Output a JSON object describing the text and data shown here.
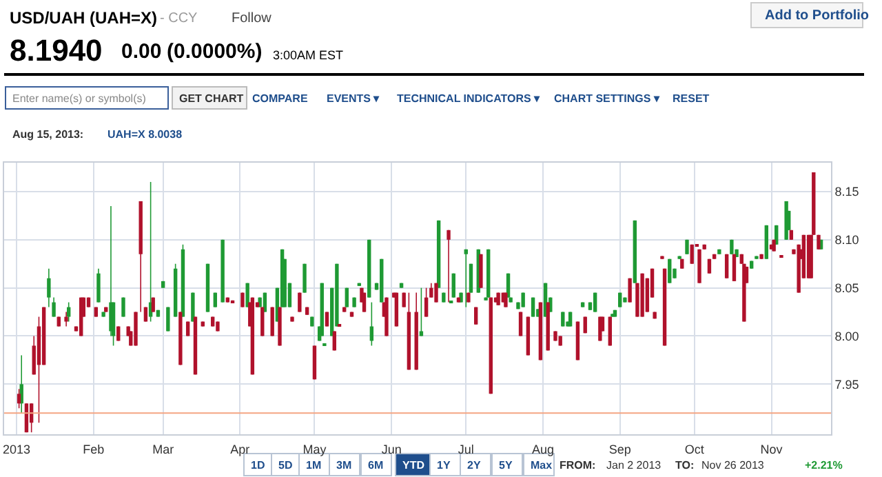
{
  "chart_data": {
    "type": "candlestick",
    "title": "USD/UAH (UAH=X)",
    "annotations": [
      "- CCY",
      "Follow",
      "8.1940",
      "0.00",
      "(0.0000%)",
      "3:00AM EST",
      "Add to Portfolio",
      "Enter name(s) or symbol(s)",
      "GET CHART",
      "COMPARE",
      "EVENTS ▾",
      "TECHNICAL INDICATORS ▾",
      "CHART SETTINGS ▾",
      "RESET",
      "Aug 15, 2013:",
      "UAH=X 8.0038",
      "1D",
      "5D",
      "1M",
      "3M",
      "6M",
      "YTD",
      "1Y",
      "2Y",
      "5Y",
      "Max",
      "FROM:",
      "Jan 2 2013",
      "TO:",
      "Nov 26 2013",
      "+2.21%"
    ],
    "x": [
      "2013-01-02",
      "2013-01-03",
      "2013-01-05",
      "2013-01-07",
      "2013-01-08",
      "2013-01-10",
      "2013-01-12",
      "2013-01-14",
      "2013-01-16",
      "2013-01-18",
      "2013-01-21",
      "2013-01-22",
      "2013-01-25",
      "2013-01-27",
      "2013-01-28",
      "2013-01-30",
      "2013-02-02",
      "2013-02-03",
      "2013-02-05",
      "2013-02-06",
      "2013-02-08",
      "2013-02-09",
      "2013-02-11",
      "2013-02-13",
      "2013-02-15",
      "2013-02-16",
      "2013-02-18",
      "2013-02-20",
      "2013-02-22",
      "2013-02-24",
      "2013-02-25",
      "2013-02-27",
      "2013-03-01",
      "2013-03-03",
      "2013-03-06",
      "2013-03-08",
      "2013-03-09",
      "2013-03-11",
      "2013-03-13",
      "2013-03-14",
      "2013-03-17",
      "2013-03-19",
      "2013-03-21",
      "2013-03-22",
      "2013-03-23",
      "2013-03-25",
      "2013-03-27",
      "2013-03-29",
      "2013-04-02",
      "2013-04-04",
      "2013-04-05",
      "2013-04-06",
      "2013-04-08",
      "2013-04-09",
      "2013-04-10",
      "2013-04-11",
      "2013-04-14",
      "2013-04-16",
      "2013-04-17",
      "2013-04-18",
      "2013-04-19",
      "2013-04-21",
      "2013-04-22",
      "2013-04-25",
      "2013-04-27",
      "2013-04-28",
      "2013-04-30",
      "2013-05-01",
      "2013-05-03",
      "2013-05-04",
      "2013-05-05",
      "2013-05-06",
      "2013-05-08",
      "2013-05-09",
      "2013-05-10",
      "2013-05-11",
      "2013-05-13",
      "2013-05-14",
      "2013-05-16",
      "2013-05-17",
      "2013-05-19",
      "2013-05-20",
      "2013-05-21",
      "2013-05-23",
      "2013-05-24",
      "2013-05-26",
      "2013-05-28",
      "2013-05-29",
      "2013-05-30",
      "2013-06-02",
      "2013-06-03",
      "2013-06-05",
      "2013-06-06",
      "2013-06-08",
      "2013-06-11",
      "2013-06-13",
      "2013-06-15",
      "2013-06-17",
      "2013-06-19",
      "2013-06-20",
      "2013-06-22",
      "2013-06-24",
      "2013-06-25",
      "2013-06-26",
      "2013-06-28",
      "2013-06-29",
      "2013-07-01",
      "2013-07-02",
      "2013-07-03",
      "2013-07-05",
      "2013-07-06",
      "2013-07-07",
      "2013-07-09",
      "2013-07-10",
      "2013-07-11",
      "2013-07-13",
      "2013-07-14",
      "2013-07-16",
      "2013-07-17",
      "2013-07-18",
      "2013-07-19",
      "2013-07-22",
      "2013-07-23",
      "2013-07-24",
      "2013-07-26",
      "2013-07-28",
      "2013-07-30",
      "2013-07-31",
      "2013-08-02",
      "2013-08-03",
      "2013-08-04",
      "2013-08-06",
      "2013-08-08",
      "2013-08-09",
      "2013-08-11",
      "2013-08-12",
      "2013-08-15",
      "2013-08-17",
      "2013-08-18",
      "2013-08-20",
      "2013-08-22",
      "2013-08-24",
      "2013-08-25",
      "2013-08-28",
      "2013-08-29",
      "2013-08-30",
      "2013-09-01",
      "2013-09-03",
      "2013-09-05",
      "2013-09-07",
      "2013-09-08",
      "2013-09-10",
      "2013-09-12",
      "2013-09-14",
      "2013-09-15",
      "2013-09-18",
      "2013-09-19",
      "2013-09-21",
      "2013-09-23",
      "2013-09-25",
      "2013-09-26",
      "2013-09-28",
      "2013-09-30",
      "2013-10-02",
      "2013-10-03",
      "2013-10-05",
      "2013-10-07",
      "2013-10-09",
      "2013-10-11",
      "2013-10-14",
      "2013-10-16",
      "2013-10-17",
      "2013-10-18",
      "2013-10-20",
      "2013-10-21",
      "2013-10-22",
      "2013-10-24",
      "2013-10-26",
      "2013-10-28",
      "2013-10-30",
      "2013-11-01",
      "2013-11-02",
      "2013-11-03",
      "2013-11-05",
      "2013-11-07",
      "2013-11-08",
      "2013-11-09",
      "2013-11-10",
      "2013-11-12",
      "2013-11-13",
      "2013-11-14",
      "2013-11-16",
      "2013-11-17",
      "2013-11-18",
      "2013-11-20",
      "2013-11-21"
    ],
    "ohlc": [
      [
        7.94,
        7.945,
        7.925,
        7.93
      ],
      [
        7.93,
        7.98,
        7.92,
        7.95
      ],
      [
        7.93,
        7.93,
        7.9,
        7.9
      ],
      [
        7.93,
        7.93,
        7.9,
        7.91
      ],
      [
        7.99,
        8.0,
        7.96,
        7.96
      ],
      [
        8.01,
        8.02,
        7.91,
        7.97
      ],
      [
        8.03,
        8.03,
        7.97,
        7.97
      ],
      [
        8.04,
        8.07,
        8.03,
        8.06
      ],
      [
        8.02,
        8.04,
        8.02,
        8.035
      ],
      [
        8.02,
        8.02,
        8.01,
        8.01
      ],
      [
        8.02,
        8.025,
        8.01,
        8.015
      ],
      [
        8.02,
        8.035,
        8.015,
        8.03
      ],
      [
        8.01,
        8.01,
        8.005,
        8.005
      ],
      [
        8.04,
        8.04,
        8.0,
        8.0
      ],
      [
        8.04,
        8.04,
        8.02,
        8.02
      ],
      [
        8.04,
        8.04,
        8.03,
        8.03
      ],
      [
        8.03,
        8.03,
        8.02,
        8.02
      ],
      [
        8.035,
        8.07,
        8.035,
        8.065
      ],
      [
        8.02,
        8.025,
        8.02,
        8.025
      ],
      [
        8.03,
        8.03,
        8.025,
        8.025
      ],
      [
        8.005,
        8.135,
        8.0,
        8.035
      ],
      [
        8.0,
        8.035,
        7.99,
        8.035
      ],
      [
        8.01,
        8.01,
        7.995,
        7.995
      ],
      [
        8.02,
        8.04,
        8.02,
        8.04
      ],
      [
        8.01,
        8.01,
        8.0,
        8.0
      ],
      [
        8.005,
        8.005,
        7.99,
        7.99
      ],
      [
        8.025,
        8.025,
        7.99,
        7.99
      ],
      [
        8.14,
        8.14,
        8.025,
        8.085
      ],
      [
        8.03,
        8.03,
        8.015,
        8.015
      ],
      [
        8.02,
        8.16,
        8.015,
        8.035
      ],
      [
        8.04,
        8.04,
        8.025,
        8.025
      ],
      [
        8.02,
        8.027,
        8.02,
        8.027
      ],
      [
        8.05,
        8.057,
        8.05,
        8.057
      ],
      [
        8.005,
        8.03,
        8.005,
        8.03
      ],
      [
        8.02,
        8.075,
        8.02,
        8.07
      ],
      [
        8.025,
        8.025,
        7.97,
        7.97
      ],
      [
        8.02,
        8.095,
        8.02,
        8.09
      ],
      [
        8.015,
        8.015,
        8.0,
        8.0
      ],
      [
        8.015,
        8.045,
        8.015,
        8.045
      ],
      [
        8.02,
        8.02,
        7.96,
        7.96
      ],
      [
        8.015,
        8.015,
        8.01,
        8.01
      ],
      [
        8.025,
        8.075,
        8.025,
        8.075
      ],
      [
        8.02,
        8.02,
        8.01,
        8.01
      ],
      [
        8.03,
        8.045,
        8.03,
        8.045
      ],
      [
        8.015,
        8.015,
        8.005,
        8.005
      ],
      [
        8.035,
        8.1,
        8.035,
        8.1
      ],
      [
        8.04,
        8.04,
        8.035,
        8.035
      ],
      [
        8.037,
        8.037,
        8.035,
        8.035
      ],
      [
        8.045,
        8.045,
        8.03,
        8.03
      ],
      [
        8.03,
        8.055,
        8.03,
        8.055
      ],
      [
        8.035,
        8.035,
        8.01,
        8.01
      ],
      [
        8.04,
        8.04,
        7.96,
        7.96
      ],
      [
        8.035,
        8.035,
        8.03,
        8.03
      ],
      [
        8.03,
        8.04,
        8.03,
        8.04
      ],
      [
        8.03,
        8.03,
        8.0,
        8.0
      ],
      [
        8.025,
        8.045,
        8.025,
        8.045
      ],
      [
        8.03,
        8.03,
        8.0,
        8.0
      ],
      [
        8.015,
        8.05,
        8.015,
        8.05
      ],
      [
        8.03,
        8.03,
        7.99,
        7.99
      ],
      [
        8.03,
        8.09,
        8.03,
        8.09
      ],
      [
        8.03,
        8.08,
        8.03,
        8.08
      ],
      [
        8.03,
        8.055,
        8.03,
        8.055
      ],
      [
        8.02,
        8.02,
        8.015,
        8.015
      ],
      [
        8.045,
        8.045,
        8.025,
        8.025
      ],
      [
        8.045,
        8.075,
        8.045,
        8.075
      ],
      [
        8.03,
        8.03,
        8.022,
        8.022
      ],
      [
        8.01,
        8.02,
        8.01,
        8.02
      ],
      [
        7.99,
        7.99,
        7.955,
        7.955
      ],
      [
        7.995,
        8.01,
        7.995,
        8.01
      ],
      [
        8.0,
        8.055,
        8.0,
        8.055
      ],
      [
        7.99,
        7.992,
        7.99,
        7.992
      ],
      [
        8.025,
        8.025,
        8.01,
        8.01
      ],
      [
        8.0,
        8.05,
        8.0,
        8.05
      ],
      [
        8.005,
        8.005,
        7.985,
        7.985
      ],
      [
        8.01,
        8.075,
        8.01,
        8.075
      ],
      [
        8.012,
        8.012,
        8.01,
        8.01
      ],
      [
        8.03,
        8.03,
        8.025,
        8.025
      ],
      [
        8.03,
        8.05,
        8.03,
        8.05
      ],
      [
        8.025,
        8.025,
        8.02,
        8.02
      ],
      [
        8.03,
        8.04,
        8.03,
        8.04
      ],
      [
        8.052,
        8.055,
        8.052,
        8.055
      ],
      [
        8.05,
        8.05,
        8.035,
        8.035
      ],
      [
        8.045,
        8.045,
        8.025,
        8.025
      ],
      [
        8.04,
        8.1,
        8.04,
        8.1
      ],
      [
        7.995,
        8.035,
        7.99,
        8.01
      ],
      [
        8.048,
        8.055,
        8.048,
        8.055
      ],
      [
        8.035,
        8.08,
        8.035,
        8.08
      ],
      [
        8.035,
        8.035,
        8.02,
        8.02
      ],
      [
        8.04,
        8.04,
        8.0,
        8.0
      ],
      [
        8.045,
        8.045,
        8.04,
        8.04
      ],
      [
        8.045,
        8.045,
        8.01,
        8.01
      ],
      [
        8.05,
        8.055,
        8.05,
        8.055
      ],
      [
        8.045,
        8.045,
        8.03,
        8.03
      ],
      [
        8.025,
        8.045,
        7.965,
        7.965
      ],
      [
        8.025,
        8.045,
        7.965,
        7.965
      ],
      [
        8.0,
        8.05,
        8.0,
        8.005
      ],
      [
        8.04,
        8.05,
        8.02,
        8.02
      ],
      [
        8.05,
        8.055,
        8.04,
        8.04
      ],
      [
        8.055,
        8.055,
        8.035,
        8.035
      ],
      [
        8.05,
        8.12,
        8.05,
        8.12
      ],
      [
        8.035,
        8.045,
        8.035,
        8.045
      ],
      [
        8.11,
        8.11,
        8.035,
        8.1
      ],
      [
        8.034,
        8.036,
        8.034,
        8.036
      ],
      [
        8.04,
        8.065,
        8.04,
        8.065
      ],
      [
        8.04,
        8.04,
        8.035,
        8.035
      ],
      [
        8.035,
        8.045,
        8.035,
        8.045
      ],
      [
        8.085,
        8.09,
        8.03,
        8.09
      ],
      [
        8.045,
        8.045,
        8.035,
        8.035
      ],
      [
        8.045,
        8.075,
        8.045,
        8.075
      ],
      [
        8.03,
        8.03,
        8.012,
        8.012
      ],
      [
        8.045,
        8.09,
        8.045,
        8.09
      ],
      [
        8.085,
        8.085,
        8.05,
        8.05
      ],
      [
        8.037,
        8.04,
        8.037,
        8.04
      ],
      [
        8.04,
        8.09,
        8.04,
        8.09
      ],
      [
        8.04,
        8.04,
        7.94,
        7.94
      ],
      [
        8.04,
        8.04,
        8.035,
        8.035
      ],
      [
        8.045,
        8.045,
        8.032,
        8.032
      ],
      [
        8.045,
        8.045,
        8.035,
        8.035
      ],
      [
        8.045,
        8.045,
        8.03,
        8.03
      ],
      [
        8.04,
        8.065,
        8.04,
        8.065
      ],
      [
        8.035,
        8.04,
        8.035,
        8.04
      ],
      [
        8.028,
        8.035,
        8.028,
        8.035
      ],
      [
        8.025,
        8.025,
        8.0,
        8.0
      ],
      [
        8.03,
        8.045,
        8.03,
        8.045
      ],
      [
        8.02,
        8.02,
        7.98,
        7.98
      ],
      [
        8.02,
        8.04,
        8.02,
        8.04
      ],
      [
        8.02,
        8.028,
        8.02,
        8.028
      ],
      [
        8.035,
        8.035,
        7.975,
        7.975
      ],
      [
        8.02,
        8.055,
        8.02,
        8.055
      ],
      [
        8.035,
        8.035,
        7.985,
        7.985
      ],
      [
        8.025,
        8.04,
        8.025,
        8.04
      ],
      [
        8.005,
        8.005,
        7.995,
        7.995
      ],
      [
        8.0,
        8.0,
        7.99,
        7.99
      ],
      [
        8.01,
        8.025,
        8.01,
        8.025
      ],
      [
        8.01,
        8.015,
        8.01,
        8.015
      ],
      [
        8.01,
        8.025,
        8.01,
        8.025
      ],
      [
        8.015,
        8.015,
        7.975,
        7.975
      ],
      [
        8.03,
        8.035,
        8.03,
        8.035
      ],
      [
        8.02,
        8.02,
        8.003,
        8.003
      ],
      [
        8.027,
        8.035,
        8.027,
        8.035
      ],
      [
        8.025,
        8.045,
        8.025,
        8.045
      ],
      [
        8.02,
        8.02,
        7.995,
        7.995
      ],
      [
        8.02,
        8.02,
        8.005,
        8.005
      ],
      [
        8.02,
        8.02,
        7.99,
        7.99
      ],
      [
        8.02,
        8.023,
        8.02,
        8.023
      ],
      [
        8.02,
        8.027,
        8.02,
        8.027
      ],
      [
        8.03,
        8.045,
        8.03,
        8.045
      ],
      [
        8.035,
        8.04,
        8.035,
        8.04
      ],
      [
        8.06,
        8.06,
        8.035,
        8.035
      ],
      [
        8.055,
        8.12,
        8.055,
        8.12
      ],
      [
        8.055,
        8.055,
        8.02,
        8.02
      ],
      [
        8.065,
        8.065,
        8.02,
        8.02
      ],
      [
        8.06,
        8.06,
        8.025,
        8.025
      ],
      [
        8.07,
        8.07,
        8.04,
        8.04
      ],
      [
        8.025,
        8.025,
        8.018,
        8.018
      ],
      [
        8.083,
        8.083,
        8.08,
        8.08
      ],
      [
        8.07,
        8.07,
        7.99,
        7.99
      ],
      [
        8.055,
        8.08,
        8.055,
        8.08
      ],
      [
        8.06,
        8.07,
        8.06,
        8.07
      ],
      [
        8.08,
        8.083,
        8.08,
        8.083
      ],
      [
        8.08,
        8.08,
        8.07,
        8.07
      ],
      [
        8.085,
        8.1,
        8.085,
        8.1
      ],
      [
        8.095,
        8.095,
        8.075,
        8.075
      ],
      [
        8.095,
        8.095,
        8.093,
        8.093
      ],
      [
        8.09,
        8.09,
        8.055,
        8.055
      ],
      [
        8.095,
        8.095,
        8.09,
        8.09
      ],
      [
        8.08,
        8.08,
        8.065,
        8.065
      ],
      [
        8.085,
        8.085,
        8.08,
        8.08
      ],
      [
        8.085,
        8.09,
        8.085,
        8.09
      ],
      [
        8.085,
        8.085,
        8.06,
        8.06
      ],
      [
        8.085,
        8.1,
        8.085,
        8.1
      ],
      [
        8.085,
        8.085,
        8.057,
        8.057
      ],
      [
        8.082,
        8.09,
        8.082,
        8.09
      ],
      [
        8.085,
        8.085,
        8.075,
        8.075
      ],
      [
        8.075,
        8.075,
        8.015,
        8.015
      ],
      [
        8.072,
        8.072,
        8.055,
        8.055
      ],
      [
        8.07,
        8.078,
        8.07,
        8.078
      ],
      [
        8.08,
        8.083,
        8.08,
        8.083
      ],
      [
        8.085,
        8.085,
        8.08,
        8.08
      ],
      [
        8.08,
        8.115,
        8.08,
        8.115
      ],
      [
        8.095,
        8.095,
        8.09,
        8.09
      ],
      [
        8.1,
        8.1,
        8.088,
        8.088
      ],
      [
        8.095,
        8.115,
        8.095,
        8.115
      ],
      [
        8.084,
        8.084,
        8.082,
        8.082
      ],
      [
        8.1,
        8.14,
        8.1,
        8.14
      ],
      [
        8.11,
        8.13,
        8.11,
        8.13
      ],
      [
        8.11,
        8.11,
        8.1,
        8.1
      ],
      [
        8.09,
        8.09,
        8.085,
        8.085
      ],
      [
        8.095,
        8.095,
        8.045,
        8.045
      ],
      [
        8.09,
        8.09,
        8.08,
        8.08
      ],
      [
        8.105,
        8.105,
        8.06,
        8.06
      ],
      [
        8.105,
        8.105,
        8.06,
        8.06
      ],
      [
        8.105,
        8.105,
        8.06,
        8.06
      ],
      [
        8.17,
        8.17,
        8.105,
        8.105
      ],
      [
        8.105,
        8.105,
        8.09,
        8.09
      ],
      [
        8.09,
        8.1,
        8.09,
        8.1
      ]
    ],
    "xlim": [
      "2012-12-27",
      "2013-11-25"
    ],
    "xticks": [
      {
        "value": "2013-01-01",
        "label": "2013"
      },
      {
        "value": "2013-02-01",
        "label": "Feb"
      },
      {
        "value": "2013-03-01",
        "label": "Mar"
      },
      {
        "value": "2013-04-01",
        "label": "Apr"
      },
      {
        "value": "2013-05-01",
        "label": "May"
      },
      {
        "value": "2013-06-01",
        "label": "Jun"
      },
      {
        "value": "2013-07-01",
        "label": "Jul"
      },
      {
        "value": "2013-08-01",
        "label": "Aug"
      },
      {
        "value": "2013-09-01",
        "label": "Sep"
      },
      {
        "value": "2013-10-01",
        "label": "Oct"
      },
      {
        "value": "2013-11-01",
        "label": "Nov"
      }
    ],
    "ylim": [
      7.898,
      8.18
    ],
    "yticks": [
      7.95,
      {
        "value": 8.0,
        "label": "8.00"
      },
      8.05,
      {
        "value": 8.1,
        "label": "8.10"
      },
      8.15
    ],
    "ref_lines": [
      {
        "axis": "y",
        "value": 7.92,
        "color": "#f4a582"
      }
    ],
    "grid": true
  }
}
